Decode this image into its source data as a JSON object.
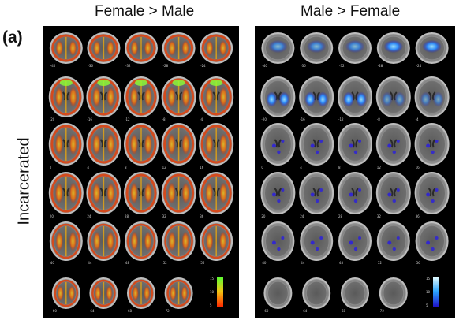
{
  "figure": {
    "letter": "(a)",
    "row_label": "Incarcerated"
  },
  "panels": [
    {
      "id": "female-gt-male",
      "title": "Female > Male",
      "colorbar": {
        "ticks": [
          "15",
          "10",
          "5"
        ],
        "colors": [
          "#55ff33",
          "#f3c313",
          "#ff2a00"
        ]
      },
      "rows": [
        [
          "-40",
          "-36",
          "-32",
          "-28",
          "-24"
        ],
        [
          "-20",
          "-16",
          "-12",
          "-8",
          "-4"
        ],
        [
          "0",
          "4",
          "8",
          "12",
          "16"
        ],
        [
          "20",
          "24",
          "28",
          "32",
          "36"
        ],
        [
          "40",
          "44",
          "48",
          "52",
          "56"
        ],
        [
          "60",
          "64",
          "68",
          "72"
        ]
      ]
    },
    {
      "id": "male-gt-female",
      "title": "Male > Female",
      "colorbar": {
        "ticks": [
          "15",
          "10",
          "5"
        ],
        "colors": [
          "#e9ffff",
          "#2aa4ff",
          "#1f12c9"
        ]
      },
      "rows": [
        [
          "-40",
          "-36",
          "-32",
          "-28",
          "-24"
        ],
        [
          "-20",
          "-16",
          "-12",
          "-8",
          "-4"
        ],
        [
          "0",
          "4",
          "8",
          "12",
          "16"
        ],
        [
          "20",
          "24",
          "28",
          "32",
          "36"
        ],
        [
          "40",
          "44",
          "48",
          "52",
          "56"
        ],
        [
          "60",
          "64",
          "68",
          "72"
        ]
      ]
    }
  ]
}
